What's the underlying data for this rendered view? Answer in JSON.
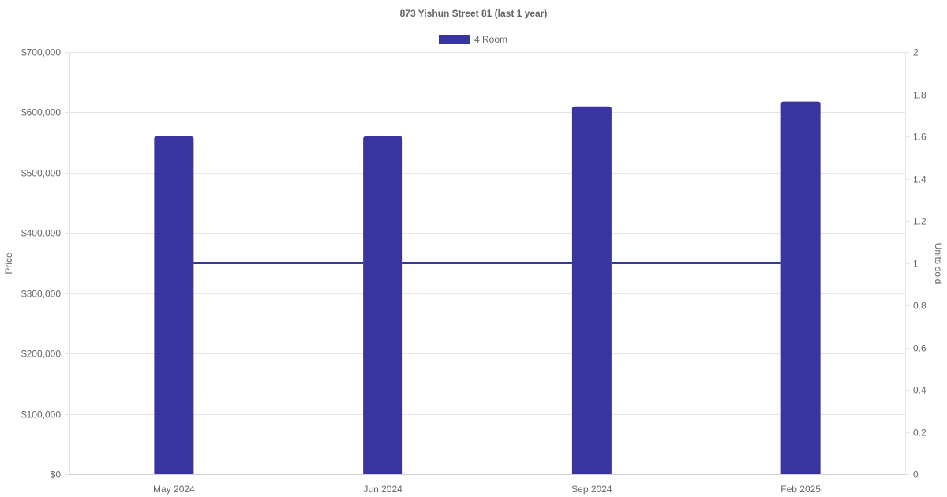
{
  "chart_data": {
    "type": "bar",
    "title": "873 Yishun Street 81 (last 1 year)",
    "categories": [
      "May 2024",
      "Jun 2024",
      "Sep 2024",
      "Feb 2025"
    ],
    "series": [
      {
        "name": "4 Room",
        "type": "bar",
        "axis": "left",
        "values": [
          560000,
          560000,
          610000,
          618000
        ],
        "color": "#3834A0"
      },
      {
        "type": "line",
        "axis": "right",
        "values": [
          1,
          1,
          1,
          1
        ],
        "color": "#3834A0"
      }
    ],
    "y_left": {
      "label": "Price",
      "min": 0,
      "max": 700000,
      "ticks": [
        0,
        100000,
        200000,
        300000,
        400000,
        500000,
        600000,
        700000
      ],
      "tick_labels": [
        "$0",
        "$100,000",
        "$200,000",
        "$300,000",
        "$400,000",
        "$500,000",
        "$600,000",
        "$700,000"
      ]
    },
    "y_right": {
      "label": "Units sold",
      "min": 0,
      "max": 2,
      "ticks": [
        0,
        0.2,
        0.4,
        0.6,
        0.8,
        1,
        1.2,
        1.4,
        1.6,
        1.8,
        2
      ],
      "tick_labels": [
        "0",
        "0.2",
        "0.4",
        "0.6",
        "0.8",
        "1",
        "1.2",
        "1.4",
        "1.6",
        "1.8",
        "2"
      ]
    },
    "grid": true,
    "legend_position": "top-center"
  }
}
